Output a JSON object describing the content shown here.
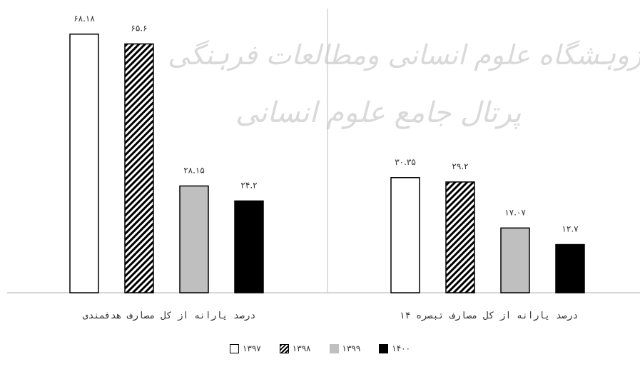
{
  "chart_data": {
    "type": "bar",
    "categories": [
      "درصد یارانه از کل مصارف  هدفمندی",
      "درصد یارانه از کل مصارف تبصره ۱۴"
    ],
    "series": [
      {
        "name": "۱۳۹۷",
        "values": [
          68.18,
          30.35
        ],
        "value_labels": [
          "۶۸.۱۸",
          "۳۰.۳۵"
        ],
        "fill": "#ffffff",
        "pattern": "none"
      },
      {
        "name": "۱۳۹۸",
        "values": [
          65.6,
          29.2
        ],
        "value_labels": [
          "۶۵.۶",
          "۲۹.۲"
        ],
        "fill": "#ffffff",
        "pattern": "diagonal-stripes"
      },
      {
        "name": "۱۳۹۹",
        "values": [
          28.15,
          17.07
        ],
        "value_labels": [
          "۲۸.۱۵",
          "۱۷.۰۷"
        ],
        "fill": "#bfbfbf",
        "pattern": "none"
      },
      {
        "name": "۱۴۰۰",
        "values": [
          24.2,
          12.7
        ],
        "value_labels": [
          "۲۴.۲",
          "۱۲.۷"
        ],
        "fill": "#000000",
        "pattern": "none"
      }
    ],
    "ylim": [
      0,
      80
    ],
    "grid": false,
    "legend_position": "bottom",
    "stroke_color": "#000000",
    "axis_color": "#bfbfbf"
  },
  "watermark": {
    "line1": "ژوہشگاه علوم انسانی ومطالعات فرہنگی",
    "line2": "پرتال جامع علوم انسانی"
  }
}
